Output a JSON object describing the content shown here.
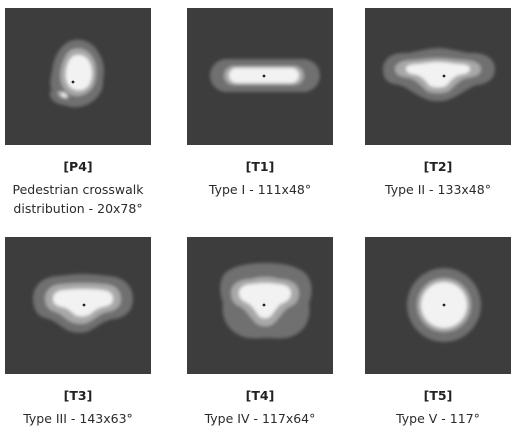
{
  "colors": {
    "background": "#3d3d3d",
    "outer_zone": "#6f6f6f",
    "mid_zone": "#a8a8a8",
    "core_zone": "#f2f2f2",
    "center_dot": "#222222"
  },
  "distributions": [
    {
      "code": "[P4]",
      "description": "Pedestrian crosswalk distribution - 20x78°"
    },
    {
      "code": "[T1]",
      "description": "Type I - 111x48°"
    },
    {
      "code": "[T2]",
      "description": "Type II - 133x48°"
    },
    {
      "code": "[T3]",
      "description": "Type III - 143x63°"
    },
    {
      "code": "[T4]",
      "description": "Type IV - 117x64°"
    },
    {
      "code": "[T5]",
      "description": "Type V - 117°"
    }
  ]
}
